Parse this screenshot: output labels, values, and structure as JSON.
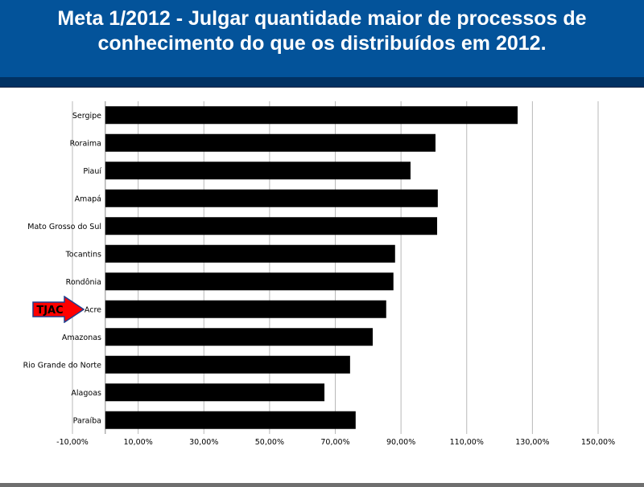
{
  "header": {
    "title_line1": "Meta 1/2012 - Julgar quantidade maior de processos de",
    "title_line2": "conhecimento do que os distribuídos em 2012."
  },
  "chart_data": {
    "type": "bar",
    "orientation": "horizontal",
    "categories": [
      "Sergipe",
      "Roraima",
      "Piauí",
      "Amapá",
      "Mato Grosso do Sul",
      "Tocantins",
      "Rondônia",
      "Acre",
      "Amazonas",
      "Rio Grande do Norte",
      "Alagoas",
      "Paraíba"
    ],
    "values": [
      125.5,
      100.5,
      92.9,
      101.2,
      101.0,
      88.2,
      87.7,
      85.5,
      81.4,
      74.5,
      66.7,
      76.2
    ],
    "xlim": [
      -10,
      150
    ],
    "xticks": [
      "-10,00%",
      "10,00%",
      "30,00%",
      "50,00%",
      "70,00%",
      "90,00%",
      "110,00%",
      "130,00%",
      "150,00%"
    ],
    "xtick_values": [
      -10,
      10,
      30,
      50,
      70,
      90,
      110,
      130,
      150
    ],
    "grid": true,
    "bar_color": "#000000",
    "title": "",
    "xlabel": "",
    "ylabel": ""
  },
  "annotation": {
    "label": "TJAC",
    "target_category": "Acre",
    "arrow_color": "#ff0000",
    "border_color": "#1f3f8f"
  }
}
